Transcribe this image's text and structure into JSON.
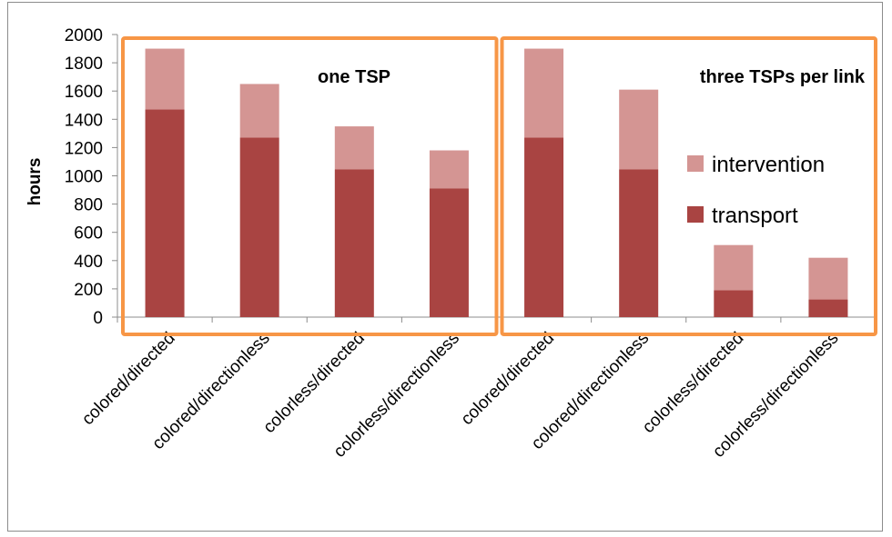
{
  "chart_data": {
    "type": "bar",
    "stacked": true,
    "categories": [
      "colored/directed",
      "colored/directionless",
      "colorless/directed",
      "colorless/directionless",
      "colored/directed",
      "colored/directionless",
      "colorless/directed",
      "colorless/directionless"
    ],
    "series": [
      {
        "name": "transport",
        "color": "#a94442",
        "values": [
          1470,
          1270,
          1045,
          910,
          1270,
          1045,
          190,
          125
        ]
      },
      {
        "name": "intervention",
        "color": "#d49593",
        "values": [
          430,
          380,
          305,
          270,
          630,
          565,
          320,
          295
        ]
      }
    ],
    "ylabel": "hours",
    "ylim": [
      0,
      2000
    ],
    "yticks": [
      "0",
      "200",
      "400",
      "600",
      "800",
      "1000",
      "1200",
      "1400",
      "1600",
      "1800",
      "2000"
    ],
    "grid": false,
    "legend_placement": "right",
    "groups": [
      {
        "title": "one TSP",
        "highlight_color": "#f79646"
      },
      {
        "title": "three TSPs per link",
        "highlight_color": "#f79646"
      }
    ]
  }
}
